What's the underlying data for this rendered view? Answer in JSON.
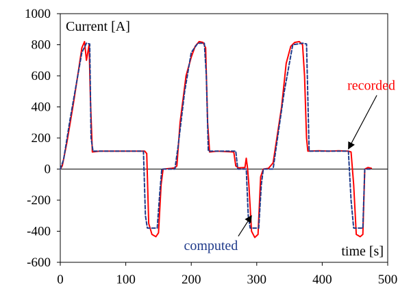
{
  "chart_data": {
    "type": "line",
    "ylabel": "Current [A]",
    "xlabel": "time [s]",
    "xlim": [
      0,
      500
    ],
    "ylim": [
      -600,
      1000
    ],
    "x_ticks": [
      0,
      100,
      200,
      300,
      400,
      500
    ],
    "y_ticks": [
      -600,
      -400,
      -200,
      0,
      200,
      400,
      600,
      800,
      1000
    ],
    "grid": false,
    "series": [
      {
        "name": "recorded",
        "color": "#ff0000",
        "style": "solid",
        "points": [
          [
            0,
            0
          ],
          [
            3,
            20
          ],
          [
            10,
            170
          ],
          [
            20,
            420
          ],
          [
            28,
            640
          ],
          [
            33,
            780
          ],
          [
            37,
            820
          ],
          [
            40,
            700
          ],
          [
            44,
            800
          ],
          [
            46,
            450
          ],
          [
            49,
            110
          ],
          [
            60,
            115
          ],
          [
            80,
            115
          ],
          [
            100,
            115
          ],
          [
            120,
            115
          ],
          [
            129,
            115
          ],
          [
            132,
            100
          ],
          [
            135,
            -350
          ],
          [
            140,
            -420
          ],
          [
            146,
            -435
          ],
          [
            150,
            -410
          ],
          [
            154,
            -100
          ],
          [
            157,
            0
          ],
          [
            170,
            5
          ],
          [
            175,
            8
          ],
          [
            178,
            20
          ],
          [
            183,
            300
          ],
          [
            192,
            600
          ],
          [
            200,
            720
          ],
          [
            206,
            790
          ],
          [
            212,
            820
          ],
          [
            218,
            815
          ],
          [
            222,
            780
          ],
          [
            225,
            300
          ],
          [
            228,
            110
          ],
          [
            240,
            115
          ],
          [
            255,
            112
          ],
          [
            265,
            110
          ],
          [
            268,
            20
          ],
          [
            272,
            8
          ],
          [
            282,
            10
          ],
          [
            284,
            70
          ],
          [
            286,
            5
          ],
          [
            288,
            -100
          ],
          [
            292,
            -400
          ],
          [
            297,
            -440
          ],
          [
            302,
            -420
          ],
          [
            306,
            -50
          ],
          [
            310,
            0
          ],
          [
            318,
            5
          ],
          [
            325,
            40
          ],
          [
            330,
            180
          ],
          [
            338,
            400
          ],
          [
            345,
            680
          ],
          [
            352,
            790
          ],
          [
            358,
            815
          ],
          [
            365,
            820
          ],
          [
            370,
            800
          ],
          [
            373,
            600
          ],
          [
            376,
            200
          ],
          [
            378,
            115
          ],
          [
            395,
            118
          ],
          [
            410,
            115
          ],
          [
            425,
            118
          ],
          [
            440,
            115
          ],
          [
            444,
            110
          ],
          [
            448,
            -100
          ],
          [
            452,
            -420
          ],
          [
            458,
            -435
          ],
          [
            462,
            -420
          ],
          [
            465,
            0
          ],
          [
            470,
            10
          ],
          [
            475,
            5
          ]
        ]
      },
      {
        "name": "computed",
        "color": "#1f3a8a",
        "style": "dashed",
        "points": [
          [
            0,
            0
          ],
          [
            5,
            60
          ],
          [
            15,
            320
          ],
          [
            25,
            560
          ],
          [
            33,
            750
          ],
          [
            40,
            810
          ],
          [
            45,
            805
          ],
          [
            47,
            200
          ],
          [
            50,
            115
          ],
          [
            100,
            115
          ],
          [
            127,
            115
          ],
          [
            130,
            -300
          ],
          [
            133,
            -380
          ],
          [
            148,
            -380
          ],
          [
            152,
            -150
          ],
          [
            155,
            0
          ],
          [
            175,
            0
          ],
          [
            180,
            150
          ],
          [
            190,
            500
          ],
          [
            200,
            750
          ],
          [
            210,
            810
          ],
          [
            220,
            810
          ],
          [
            223,
            600
          ],
          [
            226,
            115
          ],
          [
            268,
            115
          ],
          [
            271,
            0
          ],
          [
            284,
            0
          ],
          [
            287,
            -300
          ],
          [
            290,
            -380
          ],
          [
            303,
            -380
          ],
          [
            307,
            -100
          ],
          [
            310,
            0
          ],
          [
            325,
            0
          ],
          [
            330,
            150
          ],
          [
            342,
            500
          ],
          [
            355,
            800
          ],
          [
            370,
            810
          ],
          [
            376,
            805
          ],
          [
            380,
            115
          ],
          [
            440,
            115
          ],
          [
            444,
            -200
          ],
          [
            448,
            -380
          ],
          [
            462,
            -380
          ],
          [
            465,
            0
          ],
          [
            475,
            0
          ]
        ]
      }
    ],
    "annotations": [
      {
        "label": "recorded",
        "color": "#ff0000",
        "text_at": [
          475,
          510
        ],
        "arrow_to": [
          440,
          130
        ]
      },
      {
        "label": "computed",
        "color": "#1f3a8a",
        "text_at": [
          230,
          -520
        ],
        "arrow_to": [
          292,
          -300
        ]
      }
    ]
  }
}
